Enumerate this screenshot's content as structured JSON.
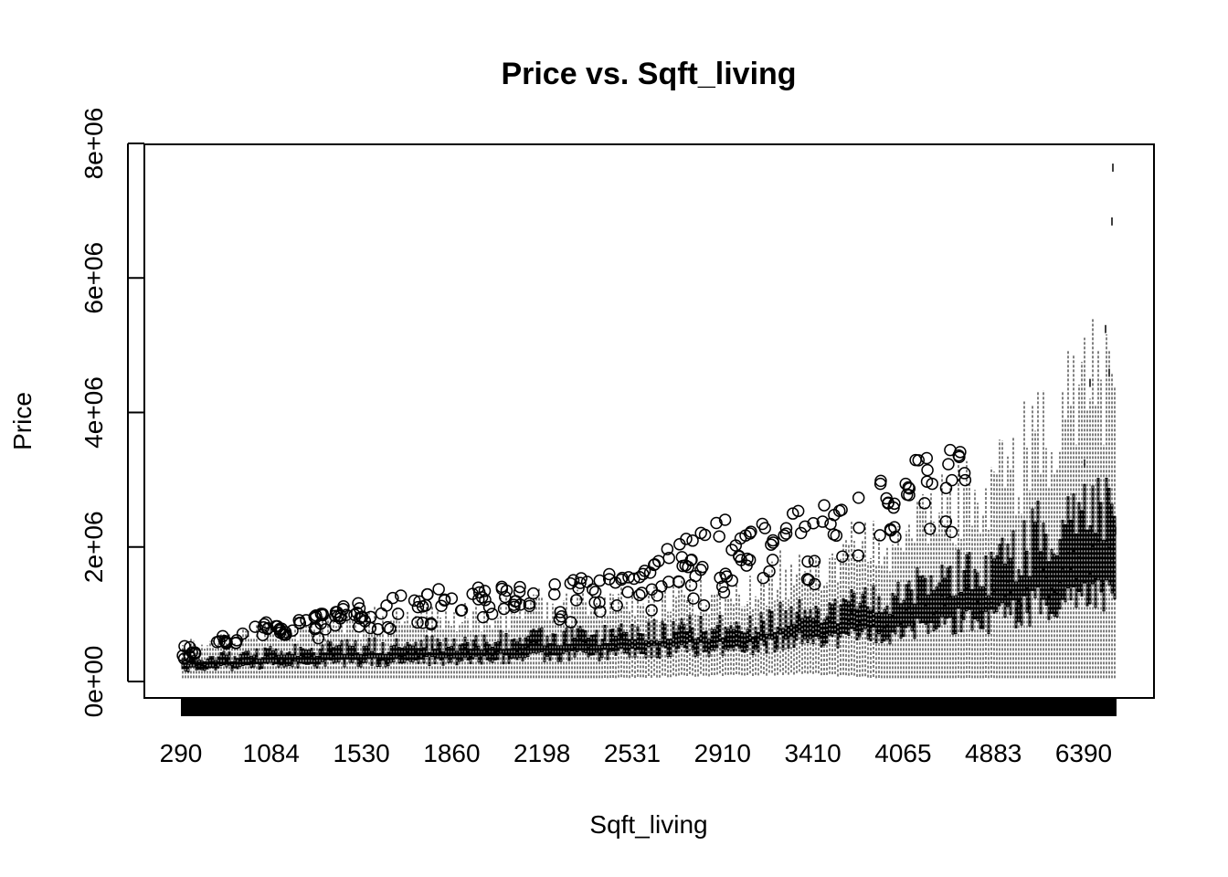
{
  "chart_data": {
    "type": "box",
    "title": "Price vs. Sqft_living",
    "xlabel": "Sqft_living",
    "ylabel": "Price",
    "ylim": [
      -250000,
      8000000
    ],
    "y_ticks": [
      "0e+00",
      "2e+06",
      "4e+06",
      "6e+06",
      "8e+06"
    ],
    "y_tick_values": [
      0,
      2000000,
      4000000,
      6000000,
      8000000
    ],
    "x_tick_labels": [
      "290",
      "1084",
      "1530",
      "1860",
      "2198",
      "2531",
      "2910",
      "3410",
      "4065",
      "4883",
      "6390"
    ],
    "grid": false,
    "legend": "none",
    "groups_approx": [
      {
        "sqft": 290,
        "q1": 180000,
        "median": 250000,
        "q3": 320000,
        "max_outlier": 300000
      },
      {
        "sqft": 1084,
        "q1": 230000,
        "median": 330000,
        "q3": 420000,
        "max_outlier": 800000
      },
      {
        "sqft": 1530,
        "q1": 280000,
        "median": 390000,
        "q3": 520000,
        "max_outlier": 1200000
      },
      {
        "sqft": 1860,
        "q1": 320000,
        "median": 440000,
        "q3": 580000,
        "max_outlier": 1400000
      },
      {
        "sqft": 2198,
        "q1": 360000,
        "median": 500000,
        "q3": 650000,
        "max_outlier": 1500000
      },
      {
        "sqft": 2531,
        "q1": 420000,
        "median": 560000,
        "q3": 720000,
        "max_outlier": 1700000
      },
      {
        "sqft": 2910,
        "q1": 500000,
        "median": 650000,
        "q3": 830000,
        "max_outlier": 2400000
      },
      {
        "sqft": 3410,
        "q1": 600000,
        "median": 780000,
        "q3": 1000000,
        "max_outlier": 2600000
      },
      {
        "sqft": 4065,
        "q1": 750000,
        "median": 1000000,
        "q3": 1350000,
        "max_outlier": 3300000
      },
      {
        "sqft": 4883,
        "q1": 950000,
        "median": 1250000,
        "q3": 1700000,
        "max_outlier": 3600000
      },
      {
        "sqft": 6390,
        "q1": 1300000,
        "median": 1800000,
        "q3": 2600000,
        "max_outlier": 7700000
      }
    ]
  }
}
